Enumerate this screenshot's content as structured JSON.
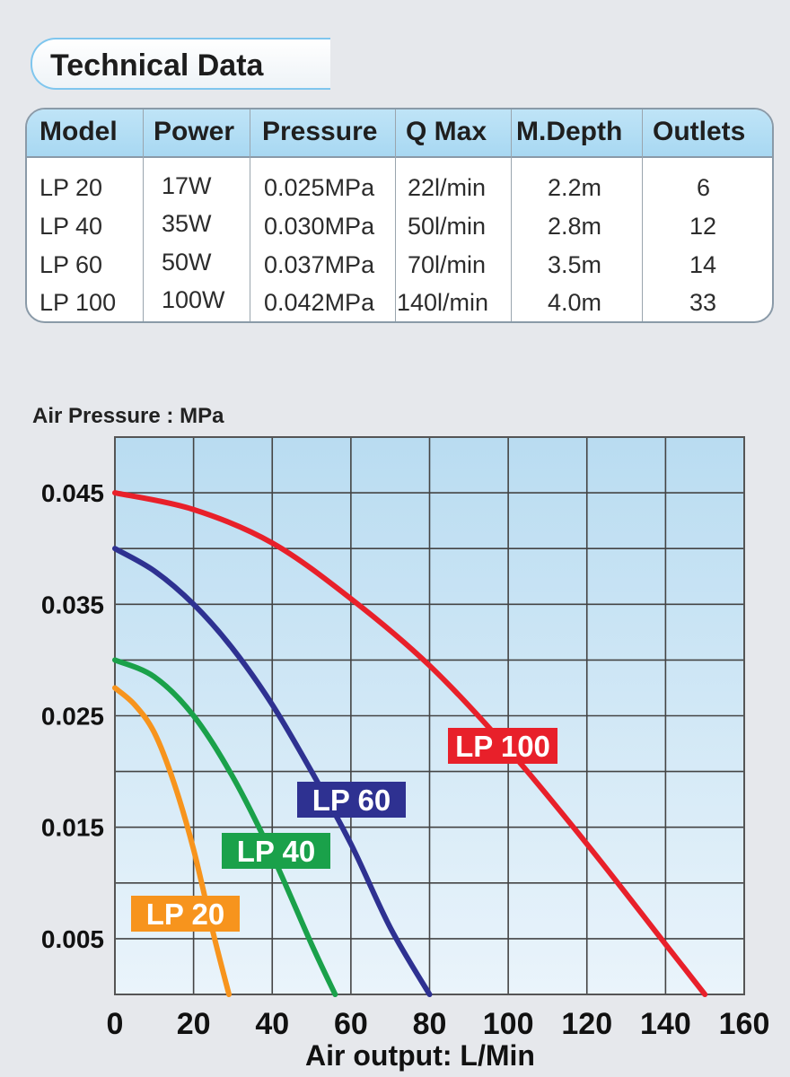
{
  "header": {
    "title": "Technical Data"
  },
  "table": {
    "columns": [
      "Model",
      "Power",
      "Pressure",
      "Q Max",
      "M.Depth",
      "Outlets"
    ],
    "rows": [
      [
        "LP 20",
        "17W",
        "0.025MPa",
        "22l/min",
        "2.2m",
        "6"
      ],
      [
        "LP 40",
        "35W",
        "0.030MPa",
        "50l/min",
        "2.8m",
        "12"
      ],
      [
        "LP 60",
        "50W",
        "0.037MPa",
        "70l/min",
        "3.5m",
        "14"
      ],
      [
        "LP 100",
        "100W",
        "0.042MPa",
        "140l/min",
        "4.0m",
        "33"
      ]
    ]
  },
  "chart_data": {
    "type": "line",
    "title": "",
    "ylabel": "Air Pressure : MPa",
    "xlabel": "Air output: L/Min",
    "xlim": [
      0,
      160
    ],
    "ylim": [
      0,
      0.05
    ],
    "xticks": [
      0,
      20,
      40,
      60,
      80,
      100,
      120,
      140,
      160
    ],
    "yticks": [
      0.045,
      0.035,
      0.025,
      0.015,
      0.005
    ],
    "grid": true,
    "series": [
      {
        "name": "LP 100",
        "color": "#e8202a",
        "x": [
          0,
          20,
          40,
          60,
          80,
          100,
          120,
          140,
          150
        ],
        "y": [
          0.045,
          0.0435,
          0.0405,
          0.0355,
          0.0295,
          0.022,
          0.0135,
          0.0045,
          0
        ]
      },
      {
        "name": "LP 60",
        "color": "#2e3191",
        "x": [
          0,
          10,
          20,
          30,
          40,
          50,
          60,
          70,
          80
        ],
        "y": [
          0.04,
          0.038,
          0.035,
          0.031,
          0.026,
          0.02,
          0.0135,
          0.006,
          0
        ]
      },
      {
        "name": "LP 40",
        "color": "#1aa14a",
        "x": [
          0,
          10,
          20,
          30,
          40,
          50,
          56
        ],
        "y": [
          0.03,
          0.0285,
          0.025,
          0.0195,
          0.0125,
          0.0045,
          0
        ]
      },
      {
        "name": "LP 20",
        "color": "#f7941d",
        "x": [
          0,
          5,
          10,
          15,
          20,
          25,
          29
        ],
        "y": [
          0.0275,
          0.026,
          0.0235,
          0.019,
          0.013,
          0.0055,
          0
        ]
      }
    ]
  }
}
